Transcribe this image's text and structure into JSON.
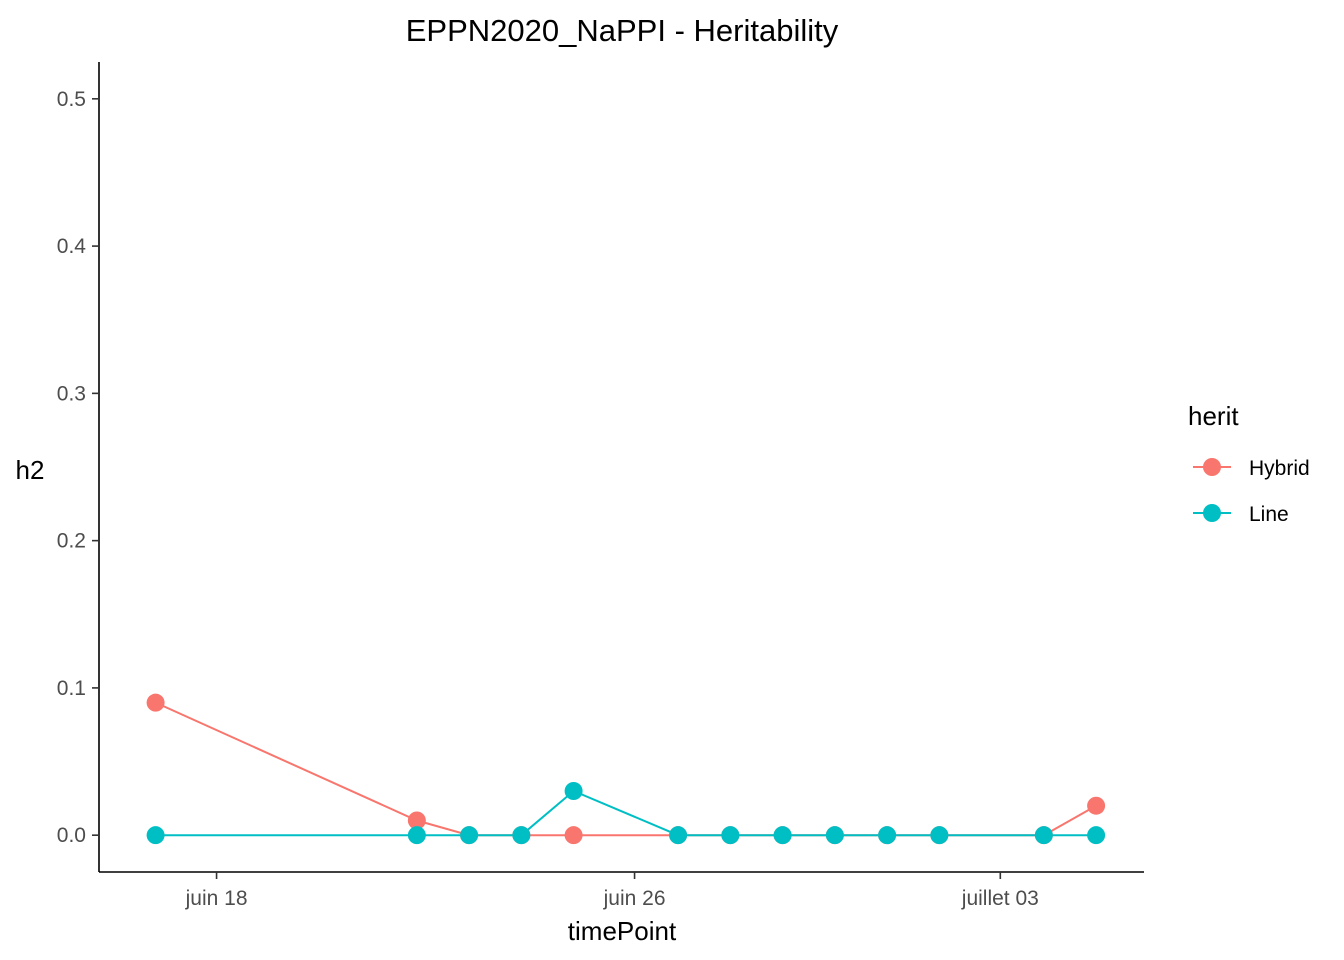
{
  "chart_data": {
    "type": "line",
    "title": "EPPN2020_NaPPI - Heritability",
    "xlabel": "timePoint",
    "ylabel": "h2",
    "x_tick_labels": [
      {
        "date": "2020-06-18",
        "label": "juin 18"
      },
      {
        "date": "2020-06-26",
        "label": "juin 26"
      },
      {
        "date": "2020-07-03",
        "label": "juillet 03"
      }
    ],
    "y_ticks": [
      "0.0",
      "0.1",
      "0.2",
      "0.3",
      "0.4",
      "0.5"
    ],
    "xlim": [
      "2020-06-15T18:00",
      "2020-07-05T18:00"
    ],
    "ylim": [
      -0.025,
      0.525
    ],
    "grid": false,
    "legend_title": "herit",
    "legend_position": "right",
    "series": [
      {
        "name": "Hybrid",
        "color": "#F8766D",
        "points": [
          {
            "x": "2020-06-16T20:00",
            "y": 0.09
          },
          {
            "x": "2020-06-21T20:00",
            "y": 0.01
          },
          {
            "x": "2020-06-22T20:00",
            "y": 0.0
          },
          {
            "x": "2020-06-23T20:00",
            "y": 0.0
          },
          {
            "x": "2020-06-24T20:00",
            "y": 0.0
          },
          {
            "x": "2020-06-26T20:00",
            "y": 0.0
          },
          {
            "x": "2020-06-27T20:00",
            "y": 0.0
          },
          {
            "x": "2020-06-28T20:00",
            "y": 0.0
          },
          {
            "x": "2020-06-29T20:00",
            "y": 0.0
          },
          {
            "x": "2020-06-30T20:00",
            "y": 0.0
          },
          {
            "x": "2020-07-01T20:00",
            "y": 0.0
          },
          {
            "x": "2020-07-03T20:00",
            "y": 0.0
          },
          {
            "x": "2020-07-04T20:00",
            "y": 0.02
          }
        ]
      },
      {
        "name": "Line",
        "color": "#00BFC4",
        "points": [
          {
            "x": "2020-06-16T20:00",
            "y": 0.0
          },
          {
            "x": "2020-06-21T20:00",
            "y": 0.0
          },
          {
            "x": "2020-06-22T20:00",
            "y": 0.0
          },
          {
            "x": "2020-06-23T20:00",
            "y": 0.0
          },
          {
            "x": "2020-06-24T20:00",
            "y": 0.03
          },
          {
            "x": "2020-06-26T20:00",
            "y": 0.0
          },
          {
            "x": "2020-06-27T20:00",
            "y": 0.0
          },
          {
            "x": "2020-06-28T20:00",
            "y": 0.0
          },
          {
            "x": "2020-06-29T20:00",
            "y": 0.0
          },
          {
            "x": "2020-06-30T20:00",
            "y": 0.0
          },
          {
            "x": "2020-07-01T20:00",
            "y": 0.0
          },
          {
            "x": "2020-07-03T20:00",
            "y": 0.0
          },
          {
            "x": "2020-07-04T20:00",
            "y": 0.0
          }
        ]
      }
    ]
  }
}
